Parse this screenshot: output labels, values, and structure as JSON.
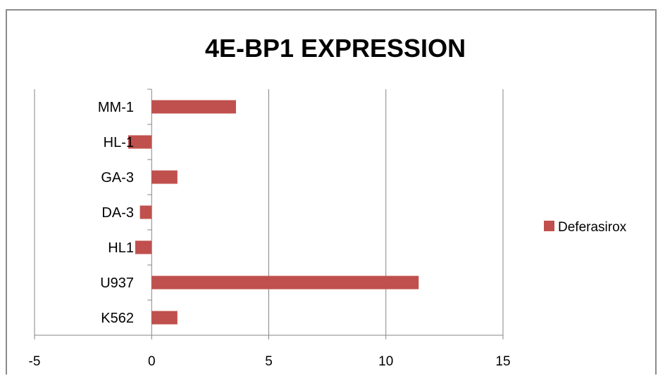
{
  "chart_data": {
    "type": "bar",
    "orientation": "horizontal",
    "title": "4E-BP1 EXPRESSION",
    "categories": [
      "MM-1",
      "HL-1",
      "GA-3",
      "DA-3",
      "HL1",
      "U937",
      "K562"
    ],
    "series": [
      {
        "name": "Deferasirox",
        "values": [
          3.6,
          -1.0,
          1.1,
          -0.5,
          -0.7,
          11.4,
          1.1
        ]
      }
    ],
    "xlim": [
      -5,
      15
    ],
    "xticks": [
      "-5",
      "0",
      "5",
      "10",
      "15"
    ],
    "grid": "vertical",
    "legend": "right",
    "colors": {
      "bar": "#c0504d",
      "grid": "#868686",
      "text": "#000000"
    }
  }
}
